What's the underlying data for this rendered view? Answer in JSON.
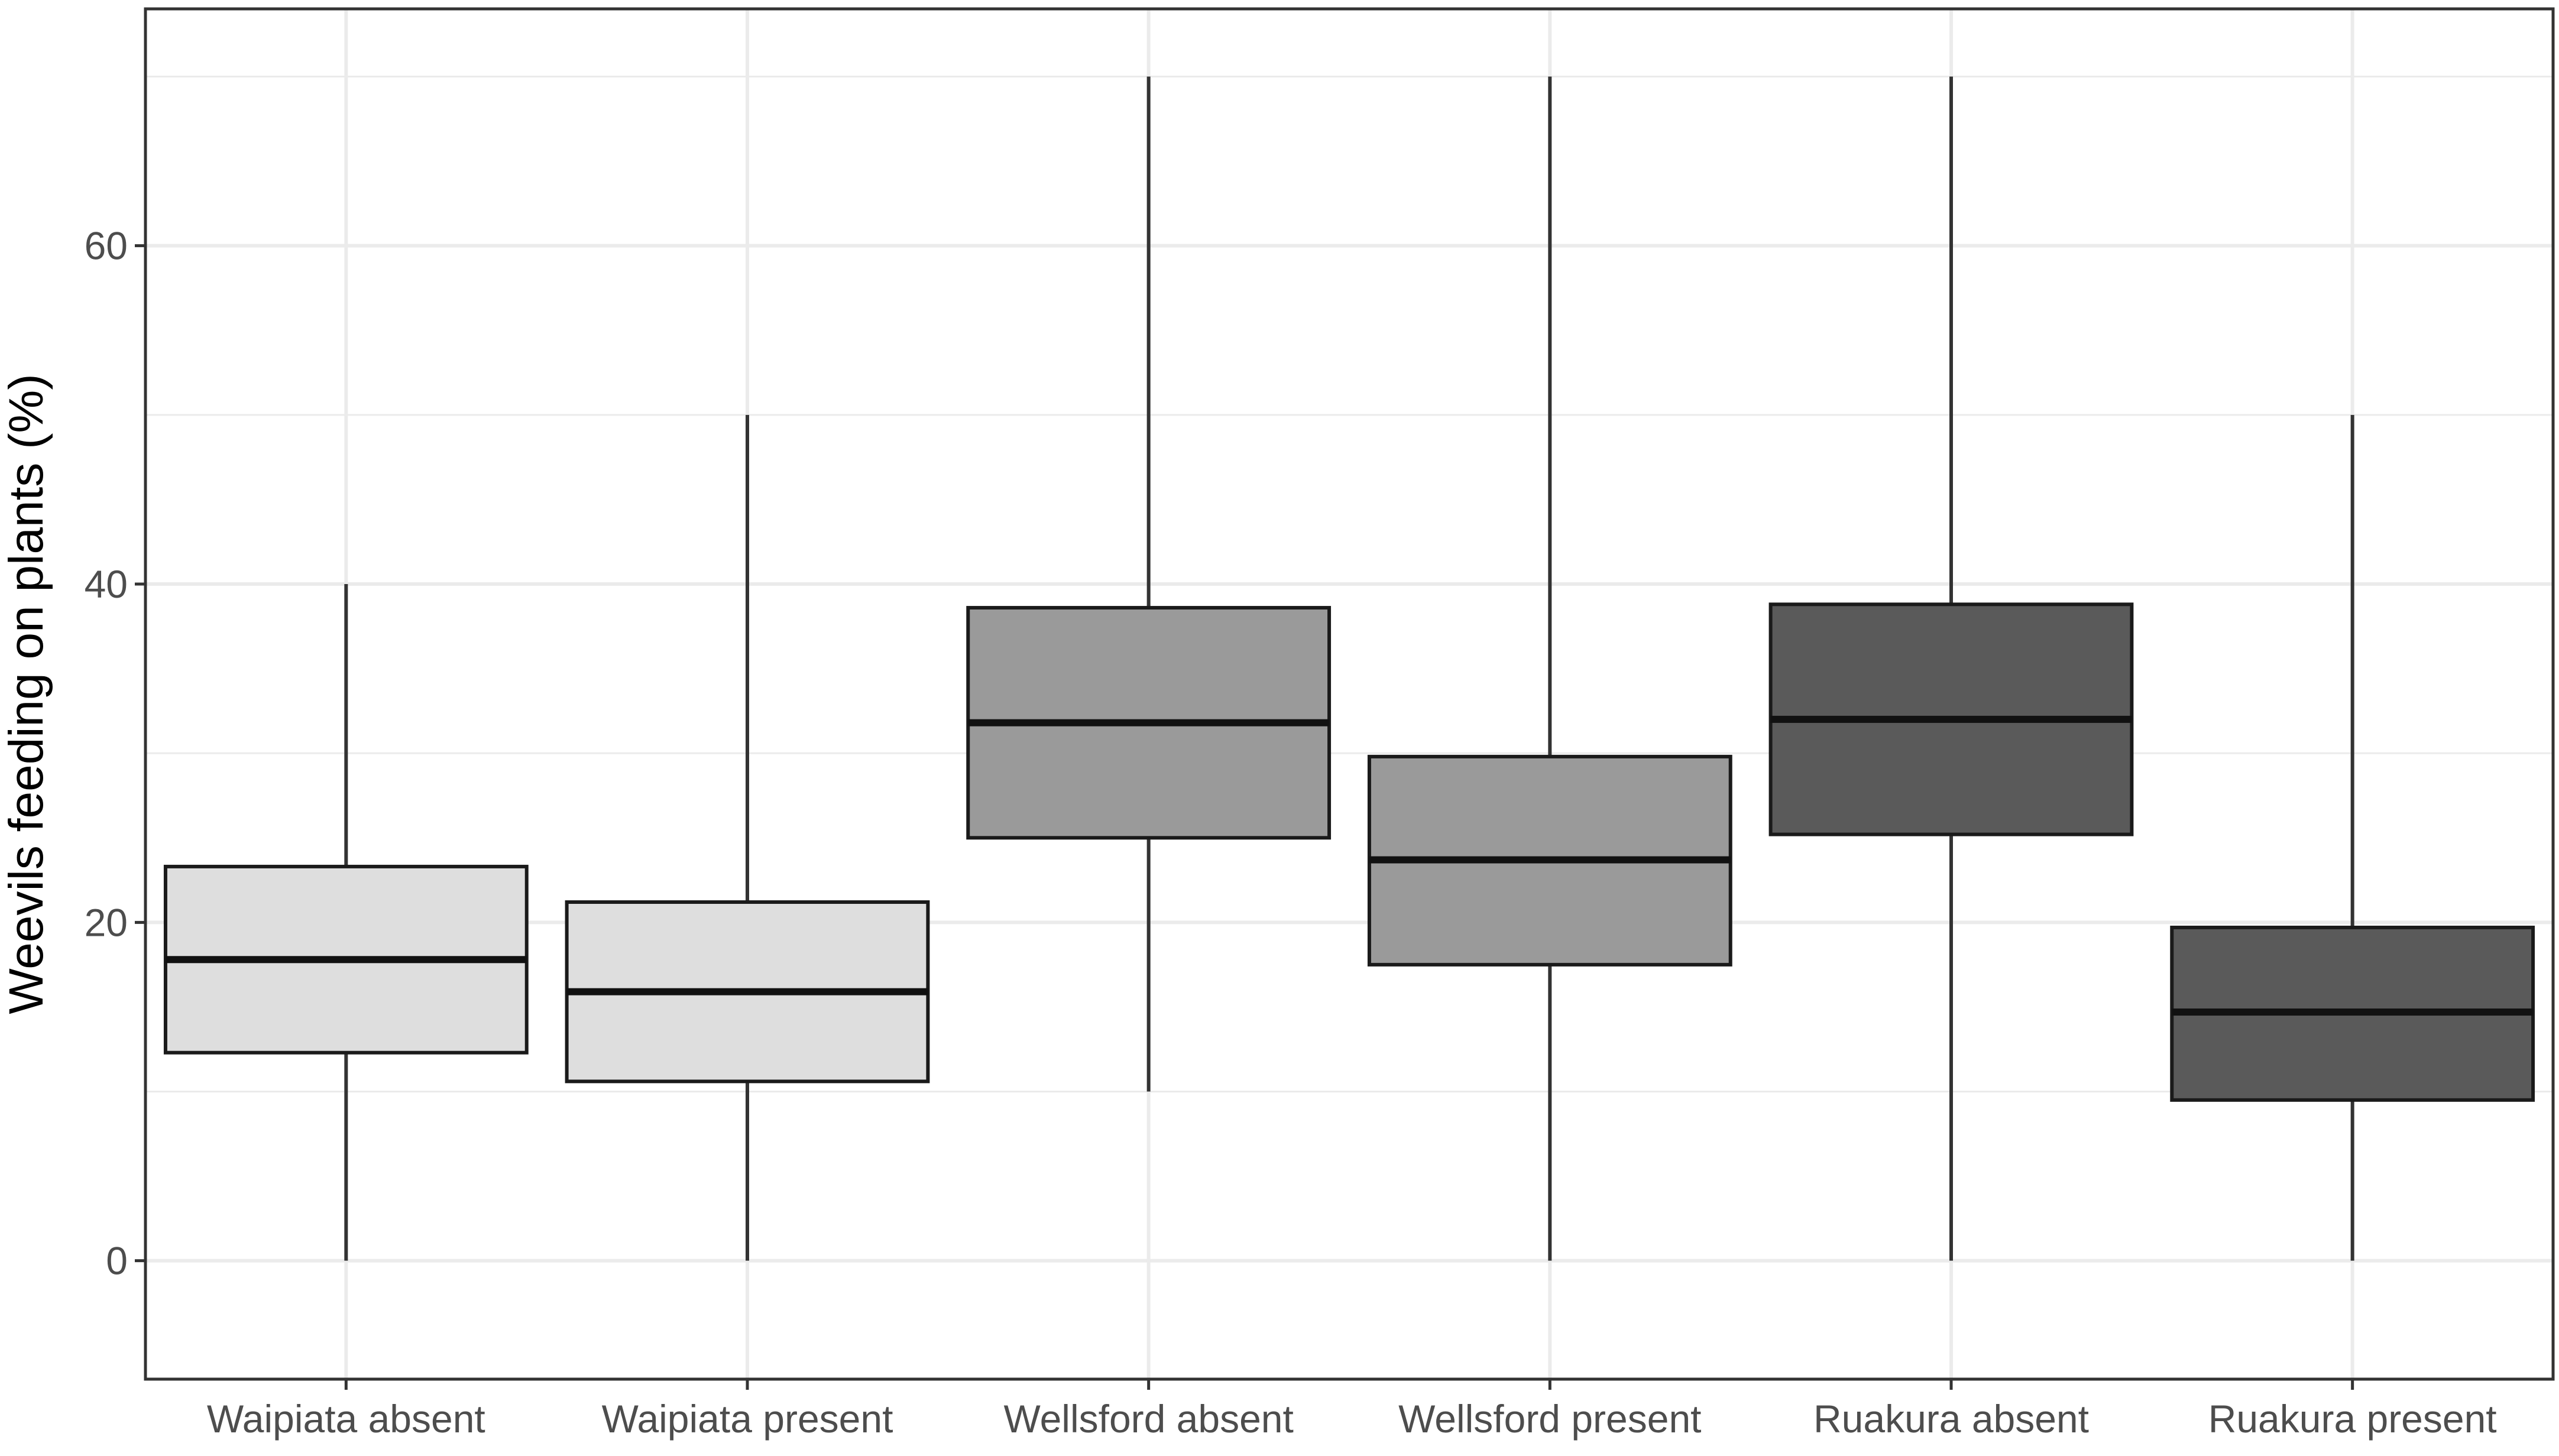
{
  "chart_data": {
    "type": "box",
    "title": "",
    "xlabel": "",
    "ylabel": "Weevils feeding on plants (%)",
    "ylim": [
      -7,
      74
    ],
    "y_ticks": [
      0,
      20,
      40,
      60
    ],
    "grid": true,
    "legend": "none",
    "categories": [
      "Waipiata absent",
      "Waipiata present",
      "Wellsford absent",
      "Wellsford present",
      "Ruakura absent",
      "Ruakura present"
    ],
    "boxes": [
      {
        "min": 0,
        "q1": 12.3,
        "median": 17.8,
        "q3": 23.3,
        "max": 40,
        "fill": "#dedede"
      },
      {
        "min": 0,
        "q1": 10.6,
        "median": 15.9,
        "q3": 21.2,
        "max": 50,
        "fill": "#dedede"
      },
      {
        "min": 10,
        "q1": 25.0,
        "median": 31.8,
        "q3": 38.6,
        "max": 70,
        "fill": "#9a9a9a"
      },
      {
        "min": 0,
        "q1": 17.5,
        "median": 23.7,
        "q3": 29.8,
        "max": 70,
        "fill": "#9a9a9a"
      },
      {
        "min": 0,
        "q1": 25.2,
        "median": 32.0,
        "q3": 38.8,
        "max": 70,
        "fill": "#5a5a5a"
      },
      {
        "min": 0,
        "q1": 9.5,
        "median": 14.7,
        "q3": 19.7,
        "max": 50,
        "fill": "#5a5a5a"
      }
    ],
    "colors": {
      "background": "#ffffff",
      "grid": "#ebebeb",
      "panel_border": "#333333",
      "box_outline": "#1a1a1a",
      "whisker": "#333333",
      "median": "#111111",
      "tick_mark": "#333333"
    }
  }
}
